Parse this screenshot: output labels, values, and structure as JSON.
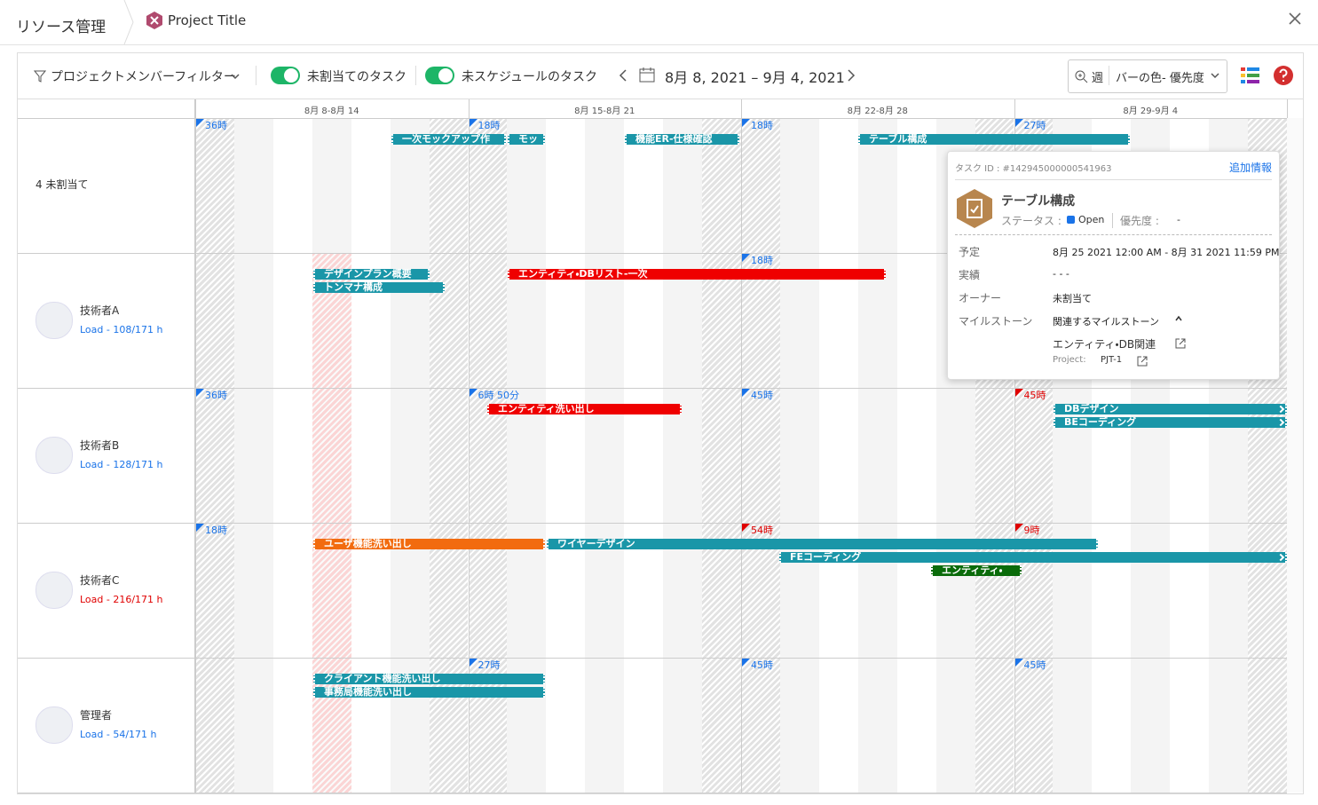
{
  "header": {
    "title": "リソース管理",
    "tab": "Project Title"
  },
  "toolbar": {
    "filter": "プロジェクトメンバーフィルター",
    "toggles": [
      "未割当てのタスク",
      "未スケジュールのタスク"
    ],
    "date_range": "8月 8, 2021 – 9月 4, 2021",
    "view": "週",
    "bar_color": "バーの色- 優先度"
  },
  "weeks": [
    "8月 8-8月 14",
    "8月 15-8月 21",
    "8月 22-8月 28",
    "8月 29-9月 4"
  ],
  "rows": [
    {
      "name": "4 未割当て",
      "markers": [
        "36時",
        "18時",
        "18時",
        "27時"
      ],
      "bars": [
        "一次モックアップ作",
        "モッ",
        "機能ER-仕様確認",
        "テーブル構成"
      ]
    },
    {
      "name": "技術者A",
      "load": "Load - 108/171 h",
      "markers": [
        null,
        null,
        "18時",
        null
      ],
      "bars": [
        "デザインプラン概要",
        "トンマナ構成",
        "エンティティ・DBリスト-一次"
      ]
    },
    {
      "name": "技術者B",
      "load": "Load - 128/171 h",
      "markers": [
        "36時",
        "6時 50分",
        "45時",
        "45時"
      ],
      "bars": [
        "エンティティ洗い出し",
        "DBデザイン",
        "BEコーディング"
      ]
    },
    {
      "name": "技術者C",
      "load": "Load - 216/171 h",
      "markers": [
        "18時",
        null,
        "54時",
        "9時"
      ],
      "bars": [
        "ユーザ機能洗い出し",
        "ワイヤーデザイン",
        "FEコーディング",
        "エンティティ・"
      ]
    },
    {
      "name": "管理者",
      "load": "Load - 54/171 h",
      "markers": [
        null,
        "27時",
        "45時",
        "45時"
      ],
      "bars": [
        "クライアント機能洗い出し",
        "事務局機能洗い出し"
      ]
    }
  ],
  "popup": {
    "task_id": "タスク ID : #142945000000541963",
    "more": "追加情報",
    "title": "テーブル構成",
    "status_label": "ステータス :",
    "status": "Open",
    "priority_label": "優先度 :",
    "priority": "-",
    "fields": [
      [
        "予定",
        "8月 25 2021 12:00 AM - 8月 31 2021 11:59 PM"
      ],
      [
        "実績",
        "- - -"
      ],
      [
        "オーナー",
        "未割当て"
      ],
      [
        "マイルストーン",
        "関連するマイルストーン"
      ]
    ],
    "milestone": "エンティティ・DB関連",
    "project_label": "Project:",
    "project": "PJT-1"
  }
}
